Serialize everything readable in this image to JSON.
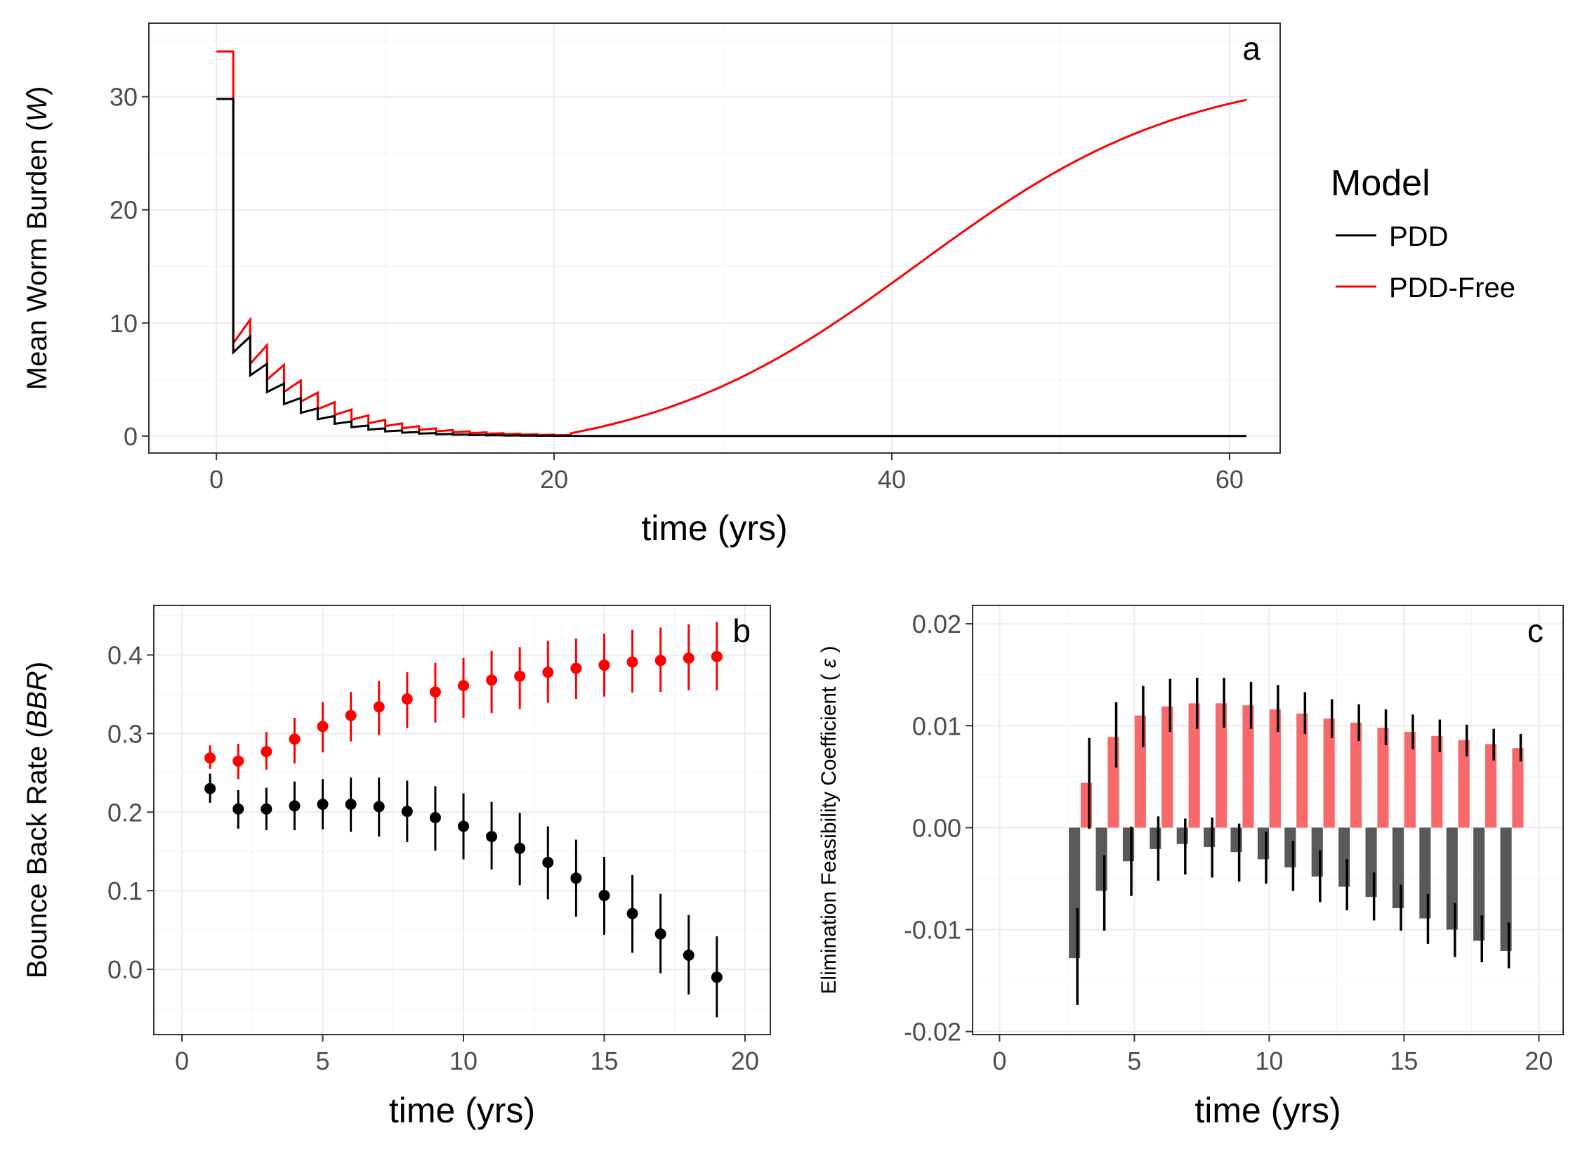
{
  "legend": {
    "title": "Model",
    "items": [
      {
        "label": "PDD",
        "color": "#000000"
      },
      {
        "label": "PDD-Free",
        "color": "#ff0000"
      }
    ]
  },
  "chart_data": [
    {
      "id": "a",
      "type": "line",
      "panel_label": "a",
      "xlabel": "time (yrs)",
      "ylabel_parts": [
        "Mean Worm Burden (",
        "W",
        ")"
      ],
      "xlim": [
        -4,
        63
      ],
      "ylim": [
        -1.5,
        36.5
      ],
      "xticks": [
        0,
        20,
        40,
        60
      ],
      "yticks": [
        0,
        10,
        20,
        30
      ],
      "ytick_labels": [
        "0",
        "10",
        "20",
        "30"
      ],
      "grid": true,
      "series": [
        {
          "name": "PDD",
          "color": "#000000",
          "start": 29.8,
          "first_drop": 7.4,
          "first_peak": 8.8,
          "decay": 0.39,
          "peak_ratio": 1.19,
          "baseline": 0.0,
          "end_x": 61
        },
        {
          "name": "PDD-Free",
          "color": "#ff0000",
          "start": 34.0,
          "first_drop": 8.2,
          "first_peak": 10.3,
          "decay": 0.38,
          "peak_ratio": 1.26,
          "min_value": 0.25,
          "max_value": 35.0,
          "growth_rate": 0.125,
          "midpoint_x": 41.5,
          "end_x": 61
        }
      ]
    },
    {
      "id": "b",
      "type": "scatter",
      "panel_label": "b",
      "xlabel": "time (yrs)",
      "ylabel_parts": [
        "Bounce Back Rate (",
        "BBR",
        ")"
      ],
      "xlim": [
        -1,
        20.9
      ],
      "ylim": [
        -0.083,
        0.463
      ],
      "xticks": [
        0,
        5,
        10,
        15,
        20
      ],
      "yticks": [
        0.0,
        0.1,
        0.2,
        0.3,
        0.4
      ],
      "ytick_labels": [
        "0.0",
        "0.1",
        "0.2",
        "0.3",
        "0.4"
      ],
      "grid": true,
      "x": [
        1,
        2,
        3,
        4,
        5,
        6,
        7,
        8,
        9,
        10,
        11,
        12,
        13,
        14,
        15,
        16,
        17,
        18,
        19
      ],
      "series": [
        {
          "name": "PDD-Free",
          "color": "#ff0000",
          "values": [
            0.269,
            0.265,
            0.277,
            0.293,
            0.309,
            0.323,
            0.334,
            0.344,
            0.353,
            0.361,
            0.368,
            0.373,
            0.378,
            0.383,
            0.387,
            0.391,
            0.393,
            0.396,
            0.398
          ],
          "lower": [
            0.255,
            0.242,
            0.254,
            0.262,
            0.276,
            0.29,
            0.298,
            0.307,
            0.314,
            0.32,
            0.326,
            0.331,
            0.339,
            0.344,
            0.347,
            0.352,
            0.353,
            0.355,
            0.355
          ],
          "upper": [
            0.285,
            0.287,
            0.302,
            0.32,
            0.34,
            0.353,
            0.367,
            0.378,
            0.39,
            0.396,
            0.405,
            0.41,
            0.418,
            0.421,
            0.427,
            0.432,
            0.435,
            0.439,
            0.442
          ]
        },
        {
          "name": "PDD",
          "color": "#000000",
          "values": [
            0.23,
            0.204,
            0.204,
            0.208,
            0.21,
            0.21,
            0.207,
            0.201,
            0.193,
            0.182,
            0.169,
            0.154,
            0.136,
            0.116,
            0.094,
            0.071,
            0.045,
            0.018,
            -0.01
          ],
          "lower": [
            0.212,
            0.179,
            0.177,
            0.177,
            0.178,
            0.175,
            0.169,
            0.162,
            0.151,
            0.14,
            0.127,
            0.107,
            0.089,
            0.067,
            0.044,
            0.021,
            -0.005,
            -0.032,
            -0.061
          ],
          "upper": [
            0.249,
            0.228,
            0.231,
            0.239,
            0.242,
            0.244,
            0.244,
            0.24,
            0.233,
            0.224,
            0.213,
            0.199,
            0.182,
            0.165,
            0.143,
            0.12,
            0.096,
            0.069,
            0.042
          ]
        }
      ]
    },
    {
      "id": "c",
      "type": "bar",
      "panel_label": "c",
      "xlabel": "time (yrs)",
      "ylabel_parts": [
        "Elimination Feasibility Coefficient ( ",
        "ε",
        " )"
      ],
      "xlim": [
        -1,
        20.9
      ],
      "ylim": [
        -0.0203,
        0.0218
      ],
      "xticks": [
        0,
        5,
        10,
        15,
        20
      ],
      "yticks": [
        -0.02,
        -0.01,
        0.0,
        0.01,
        0.02
      ],
      "ytick_labels": [
        "-0.02",
        "-0.01",
        "0.00",
        "0.01",
        "0.02"
      ],
      "grid": true,
      "x": [
        3,
        4,
        5,
        6,
        7,
        8,
        9,
        10,
        11,
        12,
        13,
        14,
        15,
        16,
        17,
        18,
        19
      ],
      "series": [
        {
          "name": "PDD-Free",
          "color": "#f8696b",
          "opacity": 1,
          "values": [
            0.0044,
            0.0089,
            0.011,
            0.0119,
            0.0122,
            0.0122,
            0.012,
            0.0116,
            0.0112,
            0.0107,
            0.0103,
            0.0098,
            0.0094,
            0.009,
            0.0086,
            0.0082,
            0.0078
          ],
          "lower": [
            -0.0001,
            0.0059,
            0.0079,
            0.0094,
            0.0097,
            0.0098,
            0.0097,
            0.0094,
            0.0092,
            0.0088,
            0.0085,
            0.0081,
            0.0077,
            0.0074,
            0.007,
            0.0066,
            0.0065
          ],
          "upper": [
            0.0088,
            0.0123,
            0.0139,
            0.0146,
            0.0147,
            0.0147,
            0.0143,
            0.014,
            0.0133,
            0.0126,
            0.0121,
            0.0116,
            0.0111,
            0.0106,
            0.0101,
            0.0097,
            0.0092
          ]
        },
        {
          "name": "PDD",
          "color": "#595959",
          "opacity": 1,
          "values": [
            -0.0128,
            -0.0062,
            -0.0033,
            -0.0021,
            -0.0016,
            -0.0019,
            -0.0024,
            -0.0031,
            -0.0039,
            -0.0048,
            -0.0058,
            -0.0068,
            -0.0079,
            -0.0089,
            -0.01,
            -0.0111,
            -0.0121
          ],
          "lower": [
            -0.0174,
            -0.0101,
            -0.0067,
            -0.0052,
            -0.0046,
            -0.0049,
            -0.0053,
            -0.0055,
            -0.0062,
            -0.0073,
            -0.0081,
            -0.0091,
            -0.0101,
            -0.0114,
            -0.0127,
            -0.0132,
            -0.0138
          ],
          "upper": [
            -0.0079,
            -0.0027,
            0.0001,
            0.0011,
            0.0009,
            0.001,
            0.0004,
            -0.0004,
            -0.0013,
            -0.0022,
            -0.0031,
            -0.0044,
            -0.0056,
            -0.0065,
            -0.0074,
            -0.0086,
            -0.0093
          ]
        }
      ]
    }
  ]
}
